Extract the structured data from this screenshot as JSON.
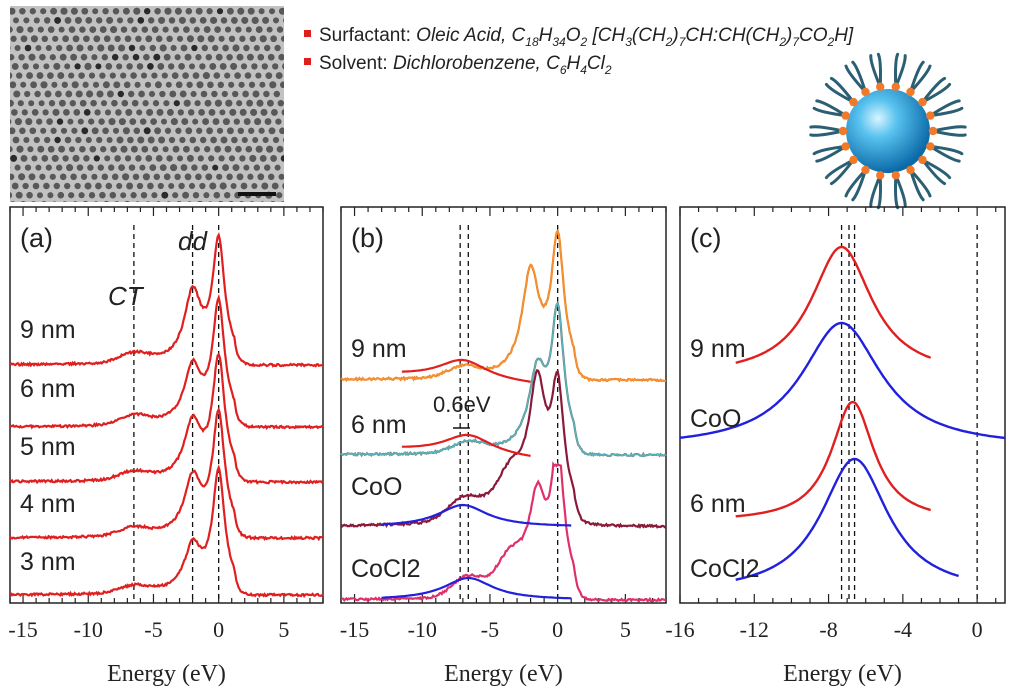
{
  "header": {
    "surfactant": {
      "label": "Surfactant:",
      "text": "Oleic Acid, C18H34O2 [CH3(CH2)7CH:CH(CH2)7CO2H]"
    },
    "solvent": {
      "label": "Solvent:",
      "text": "Dichlorobenzene, C6H4Cl2"
    },
    "bullet_color": "#e01e1e"
  },
  "chart_data": [
    {
      "type": "line",
      "panel_label": "(a)",
      "xlabel": "Energy (eV)",
      "xlim": [
        -16,
        8
      ],
      "xticks": [
        -15,
        -10,
        -5,
        0,
        5
      ],
      "xtick_labels": [
        "-15",
        "-10",
        "-5",
        "0",
        "5"
      ],
      "annotations": [
        "CT",
        "dd"
      ],
      "dashed_lines_x": [
        -6.5,
        -2,
        0
      ],
      "series": [
        {
          "name": "9 nm",
          "color": "#e02020",
          "peaks": [
            {
              "x": 0,
              "h": 1.0
            },
            {
              "x": -2.0,
              "h": 0.55
            },
            {
              "x": -6.5,
              "h": 0.08
            }
          ]
        },
        {
          "name": "6 nm",
          "color": "#e02020",
          "peaks": [
            {
              "x": 0,
              "h": 1.0
            },
            {
              "x": -2.0,
              "h": 0.45
            },
            {
              "x": -6.5,
              "h": 0.08
            }
          ]
        },
        {
          "name": "5 nm",
          "color": "#e02020",
          "peaks": [
            {
              "x": 0,
              "h": 1.0
            },
            {
              "x": -2.0,
              "h": 0.45
            },
            {
              "x": -6.5,
              "h": 0.07
            }
          ]
        },
        {
          "name": "4 nm",
          "color": "#e02020",
          "peaks": [
            {
              "x": 0,
              "h": 1.0
            },
            {
              "x": -2.0,
              "h": 0.45
            },
            {
              "x": -6.5,
              "h": 0.07
            }
          ]
        },
        {
          "name": "3 nm",
          "color": "#e02020",
          "peaks": [
            {
              "x": 0,
              "h": 1.0
            },
            {
              "x": -2.0,
              "h": 0.35
            },
            {
              "x": -6.5,
              "h": 0.06
            }
          ]
        }
      ]
    },
    {
      "type": "line",
      "panel_label": "(b)",
      "xlabel": "Energy (eV)",
      "xlim": [
        -16,
        8
      ],
      "xticks": [
        -15,
        -10,
        -5,
        0,
        5
      ],
      "xtick_labels": [
        "-15",
        "-10",
        "-5",
        "0",
        "5"
      ],
      "annotations": [
        "0.6eV"
      ],
      "dashed_lines_x": [
        -7.2,
        -6.6,
        0
      ],
      "series": [
        {
          "name": "9 nm",
          "color": "#f08020",
          "peaks": [
            {
              "x": 0,
              "h": 1.0
            },
            {
              "x": -2.0,
              "h": 0.75
            },
            {
              "x": -7.0,
              "h": 0.08
            }
          ]
        },
        {
          "name": "6 nm",
          "color": "#6a8a8a",
          "peaks": [
            {
              "x": 0,
              "h": 1.0
            },
            {
              "x": -1.5,
              "h": 0.55
            },
            {
              "x": -6.6,
              "h": 0.08
            }
          ]
        },
        {
          "name": "CoO",
          "color": "#8a1a3a",
          "peaks": [
            {
              "x": 0,
              "h": 0.9
            },
            {
              "x": -1.5,
              "h": 0.9
            },
            {
              "x": -7.0,
              "h": 0.15
            }
          ]
        },
        {
          "name": "CoCl2",
          "color": "#e0306a",
          "peaks": [
            {
              "x": 0,
              "h": 1.0
            },
            {
              "x": -1.5,
              "h": 0.65
            },
            {
              "x": -6.6,
              "h": 0.15
            }
          ]
        }
      ],
      "fits": [
        {
          "series": "9 nm",
          "color": "#e02020",
          "center": -7.0
        },
        {
          "series": "6 nm",
          "color": "#e02020",
          "center": -6.6
        },
        {
          "series": "CoO",
          "color": "#2020dd",
          "center": -7.0
        },
        {
          "series": "CoCl2",
          "color": "#2020dd",
          "center": -6.6
        }
      ]
    },
    {
      "type": "line",
      "panel_label": "(c)",
      "xlabel": "Energy (eV)",
      "xlim": [
        -16,
        1.5
      ],
      "xticks": [
        -16,
        -12,
        -8,
        -4,
        0
      ],
      "xtick_labels": [
        "-16",
        "-12",
        "-8",
        "-4",
        "0"
      ],
      "dashed_lines_x": [
        -7.3,
        -6.9,
        -6.6,
        0
      ],
      "series": [
        {
          "name": "9 nm",
          "color": "#e02020",
          "center": -7.3,
          "range": [
            -13,
            -2.5
          ]
        },
        {
          "name": "CoO",
          "color": "#2020dd",
          "center": -7.3,
          "range": [
            -16,
            1.5
          ]
        },
        {
          "name": "6 nm",
          "color": "#e02020",
          "center": -6.7,
          "range": [
            -13,
            -2.5
          ]
        },
        {
          "name": "CoCl2",
          "color": "#2020dd",
          "center": -6.6,
          "range": [
            -13,
            -1
          ]
        }
      ]
    }
  ]
}
